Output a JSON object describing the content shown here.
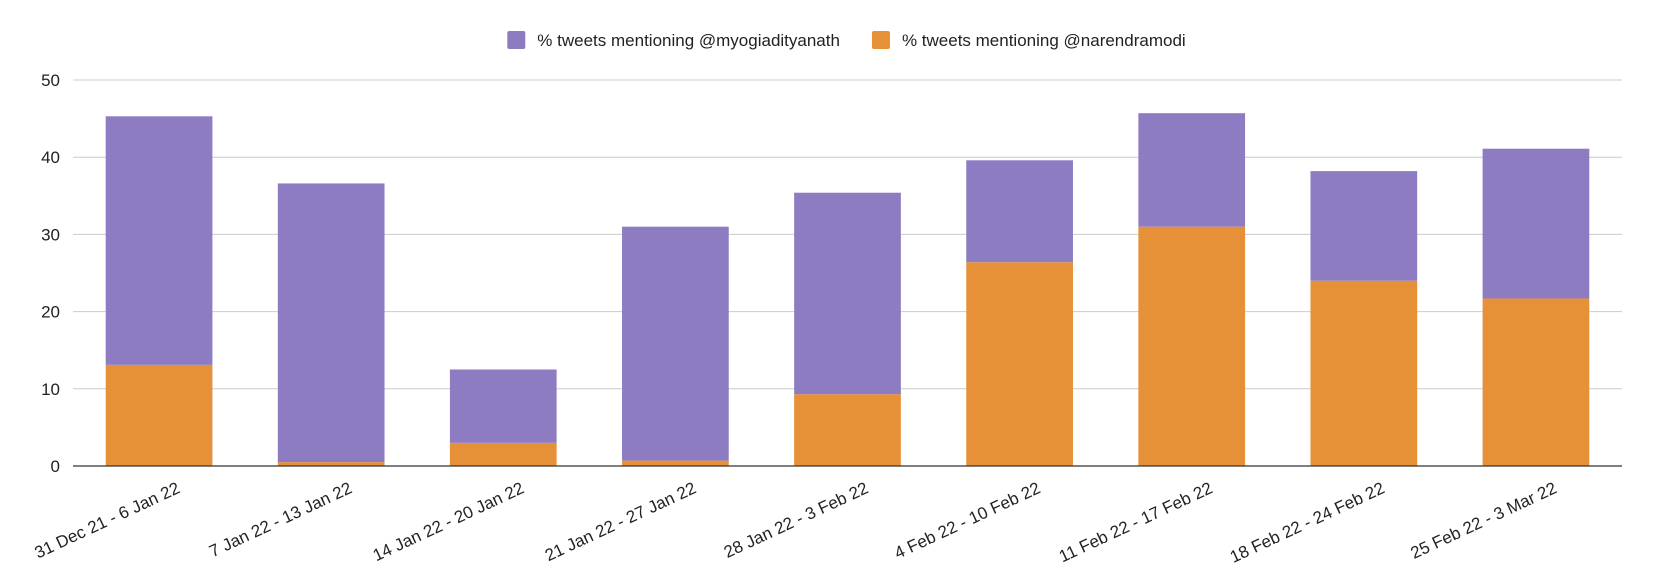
{
  "chart_data": {
    "type": "bar",
    "stacked": true,
    "categories": [
      "31 Dec 21 - 6 Jan 22",
      "7 Jan 22 - 13 Jan 22",
      "14 Jan 22 - 20 Jan 22",
      "21 Jan 22 - 27 Jan 22",
      "28 Jan 22 - 3 Feb 22",
      "4 Feb 22 - 10 Feb 22",
      "11 Feb 22 - 17 Feb 22",
      "18 Feb 22 - 24 Feb 22",
      "25 Feb 22 - 3 Mar 22"
    ],
    "series": [
      {
        "name": "% tweets mentioning @narendramodi",
        "color": "#e69138",
        "values": [
          13.1,
          0.5,
          3.0,
          0.7,
          9.3,
          26.4,
          31.0,
          24.0,
          21.7
        ]
      },
      {
        "name": "% tweets mentioning @myogiadityanath",
        "color": "#8e7cc3",
        "values": [
          32.2,
          36.1,
          9.5,
          30.3,
          26.1,
          13.2,
          14.7,
          14.2,
          19.4
        ]
      }
    ],
    "legend_order": [
      1,
      0
    ],
    "legend_position": "top",
    "ylim": [
      0,
      50
    ],
    "yticks": [
      0,
      10,
      20,
      30,
      40,
      50
    ],
    "grid": true,
    "title": "",
    "xlabel": "",
    "ylabel": ""
  }
}
